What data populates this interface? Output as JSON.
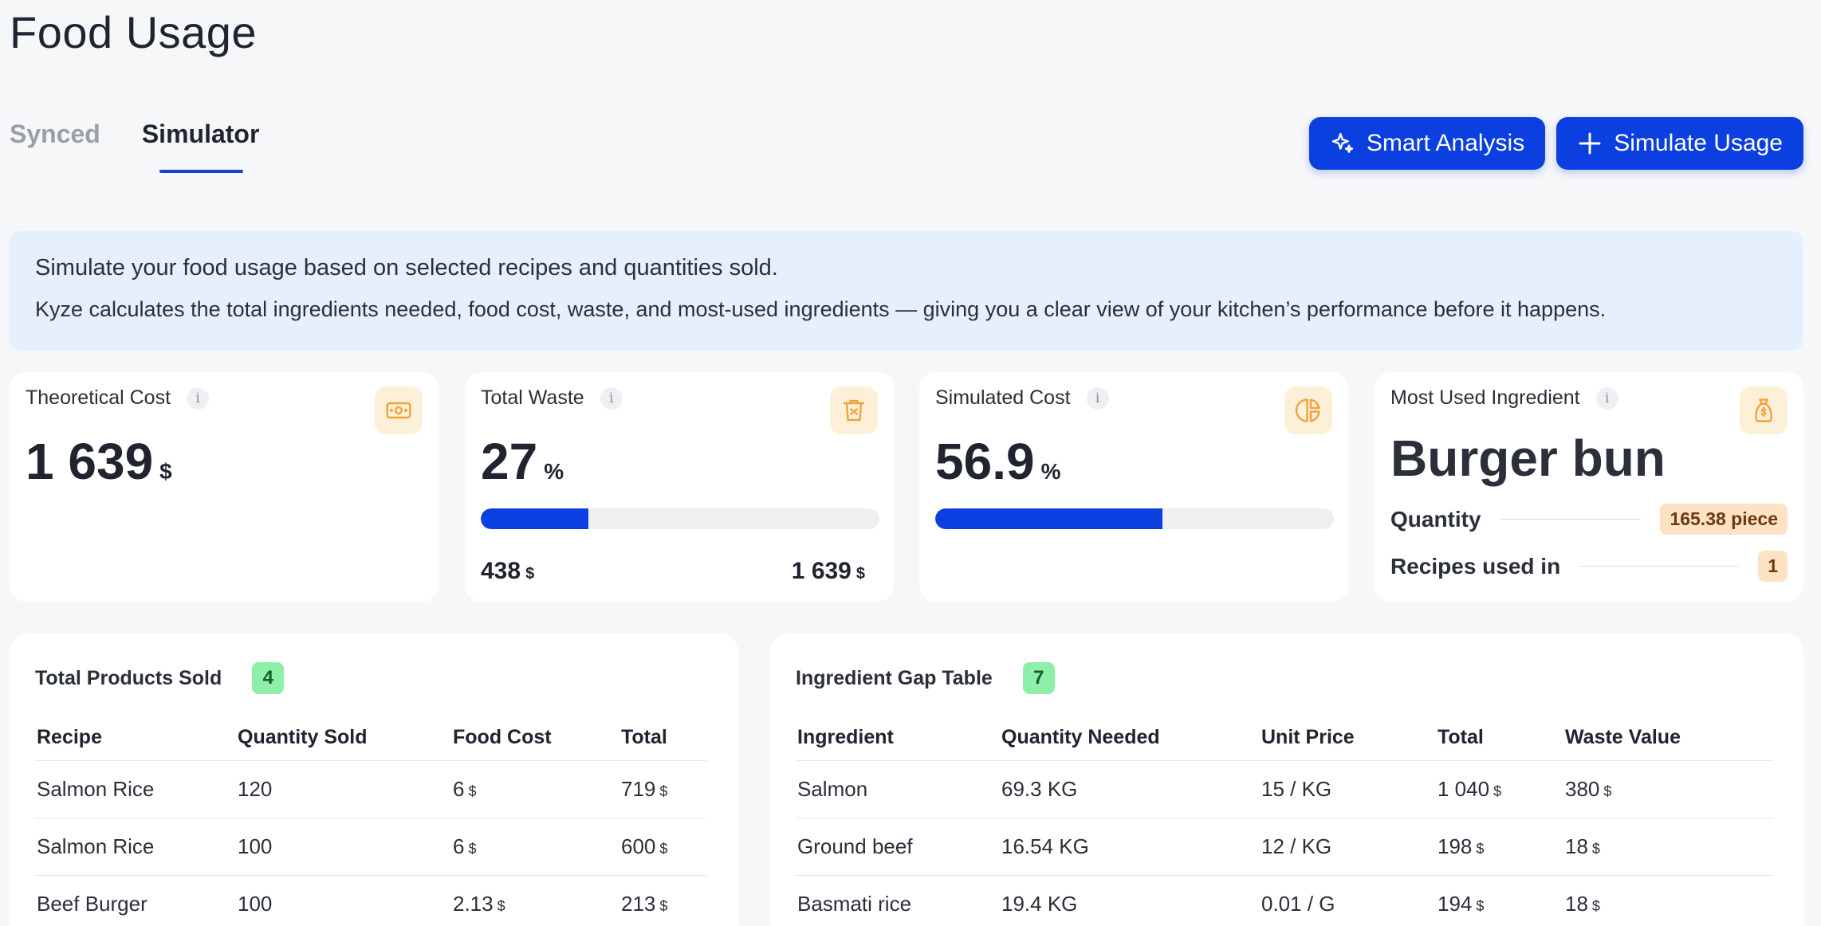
{
  "page": {
    "title": "Food Usage"
  },
  "tabs": [
    {
      "label": "Synced",
      "active": false
    },
    {
      "label": "Simulator",
      "active": true
    }
  ],
  "actions": {
    "smart_analysis": "Smart Analysis",
    "simulate_usage": "Simulate Usage"
  },
  "banner": {
    "line1": "Simulate your food usage based on selected recipes and quantities sold.",
    "line2": "Kyze calculates the total ingredients needed, food cost, waste, and most-used ingredients — giving you a clear view of your kitchen’s performance before it happens."
  },
  "kpis": {
    "theoretical_cost": {
      "title": "Theoretical Cost",
      "value": "1 639",
      "unit": "$",
      "icon": "money-icon"
    },
    "total_waste": {
      "title": "Total Waste",
      "value": "27",
      "unit": "%",
      "progress": 0.27,
      "left_value": "438",
      "left_unit": "$",
      "right_value": "1 639",
      "right_unit": "$",
      "icon": "trash-icon"
    },
    "simulated_cost": {
      "title": "Simulated Cost",
      "value": "56.9",
      "unit": "%",
      "progress": 0.569,
      "icon": "pie-chart-icon"
    },
    "most_used": {
      "title": "Most Used Ingredient",
      "name": "Burger bun",
      "quantity_label": "Quantity",
      "quantity_value": "165.38 piece",
      "recipes_label": "Recipes used in",
      "recipes_value": "1",
      "icon": "money-bag-icon"
    },
    "info_glyph": "i"
  },
  "products": {
    "title": "Total Products Sold",
    "count": "4",
    "headers": [
      "Recipe",
      "Quantity Sold",
      "Food Cost",
      "Total"
    ],
    "rows": [
      {
        "recipe": "Salmon Rice",
        "qty": "120",
        "food_cost": "6",
        "total": "719"
      },
      {
        "recipe": "Salmon Rice",
        "qty": "100",
        "food_cost": "6",
        "total": "600"
      },
      {
        "recipe": "Beef Burger",
        "qty": "100",
        "food_cost": "2.13",
        "total": "213"
      }
    ],
    "currency": "$"
  },
  "gap": {
    "title": "Ingredient Gap Table",
    "count": "7",
    "headers": [
      "Ingredient",
      "Quantity Needed",
      "Unit Price",
      "Total",
      "Waste Value"
    ],
    "rows": [
      {
        "ingredient": "Salmon",
        "qty": "69.3 KG",
        "unit_price": "15 / KG",
        "total": "1 040",
        "waste": "380"
      },
      {
        "ingredient": "Ground beef",
        "qty": "16.54 KG",
        "unit_price": "12 / KG",
        "total": "198",
        "waste": "18"
      },
      {
        "ingredient": "Basmati rice",
        "qty": "19.4 KG",
        "unit_price": "0.01 / G",
        "total": "194",
        "waste": "18"
      }
    ],
    "currency": "$"
  },
  "colors": {
    "accent": "#0b3fe0",
    "banner_bg": "#e6f0fd",
    "icon_bg": "#fdf0d8",
    "icon_fg": "#f2a23a",
    "badge_green": "#8ef0a8",
    "badge_orange": "#fde3c3"
  }
}
